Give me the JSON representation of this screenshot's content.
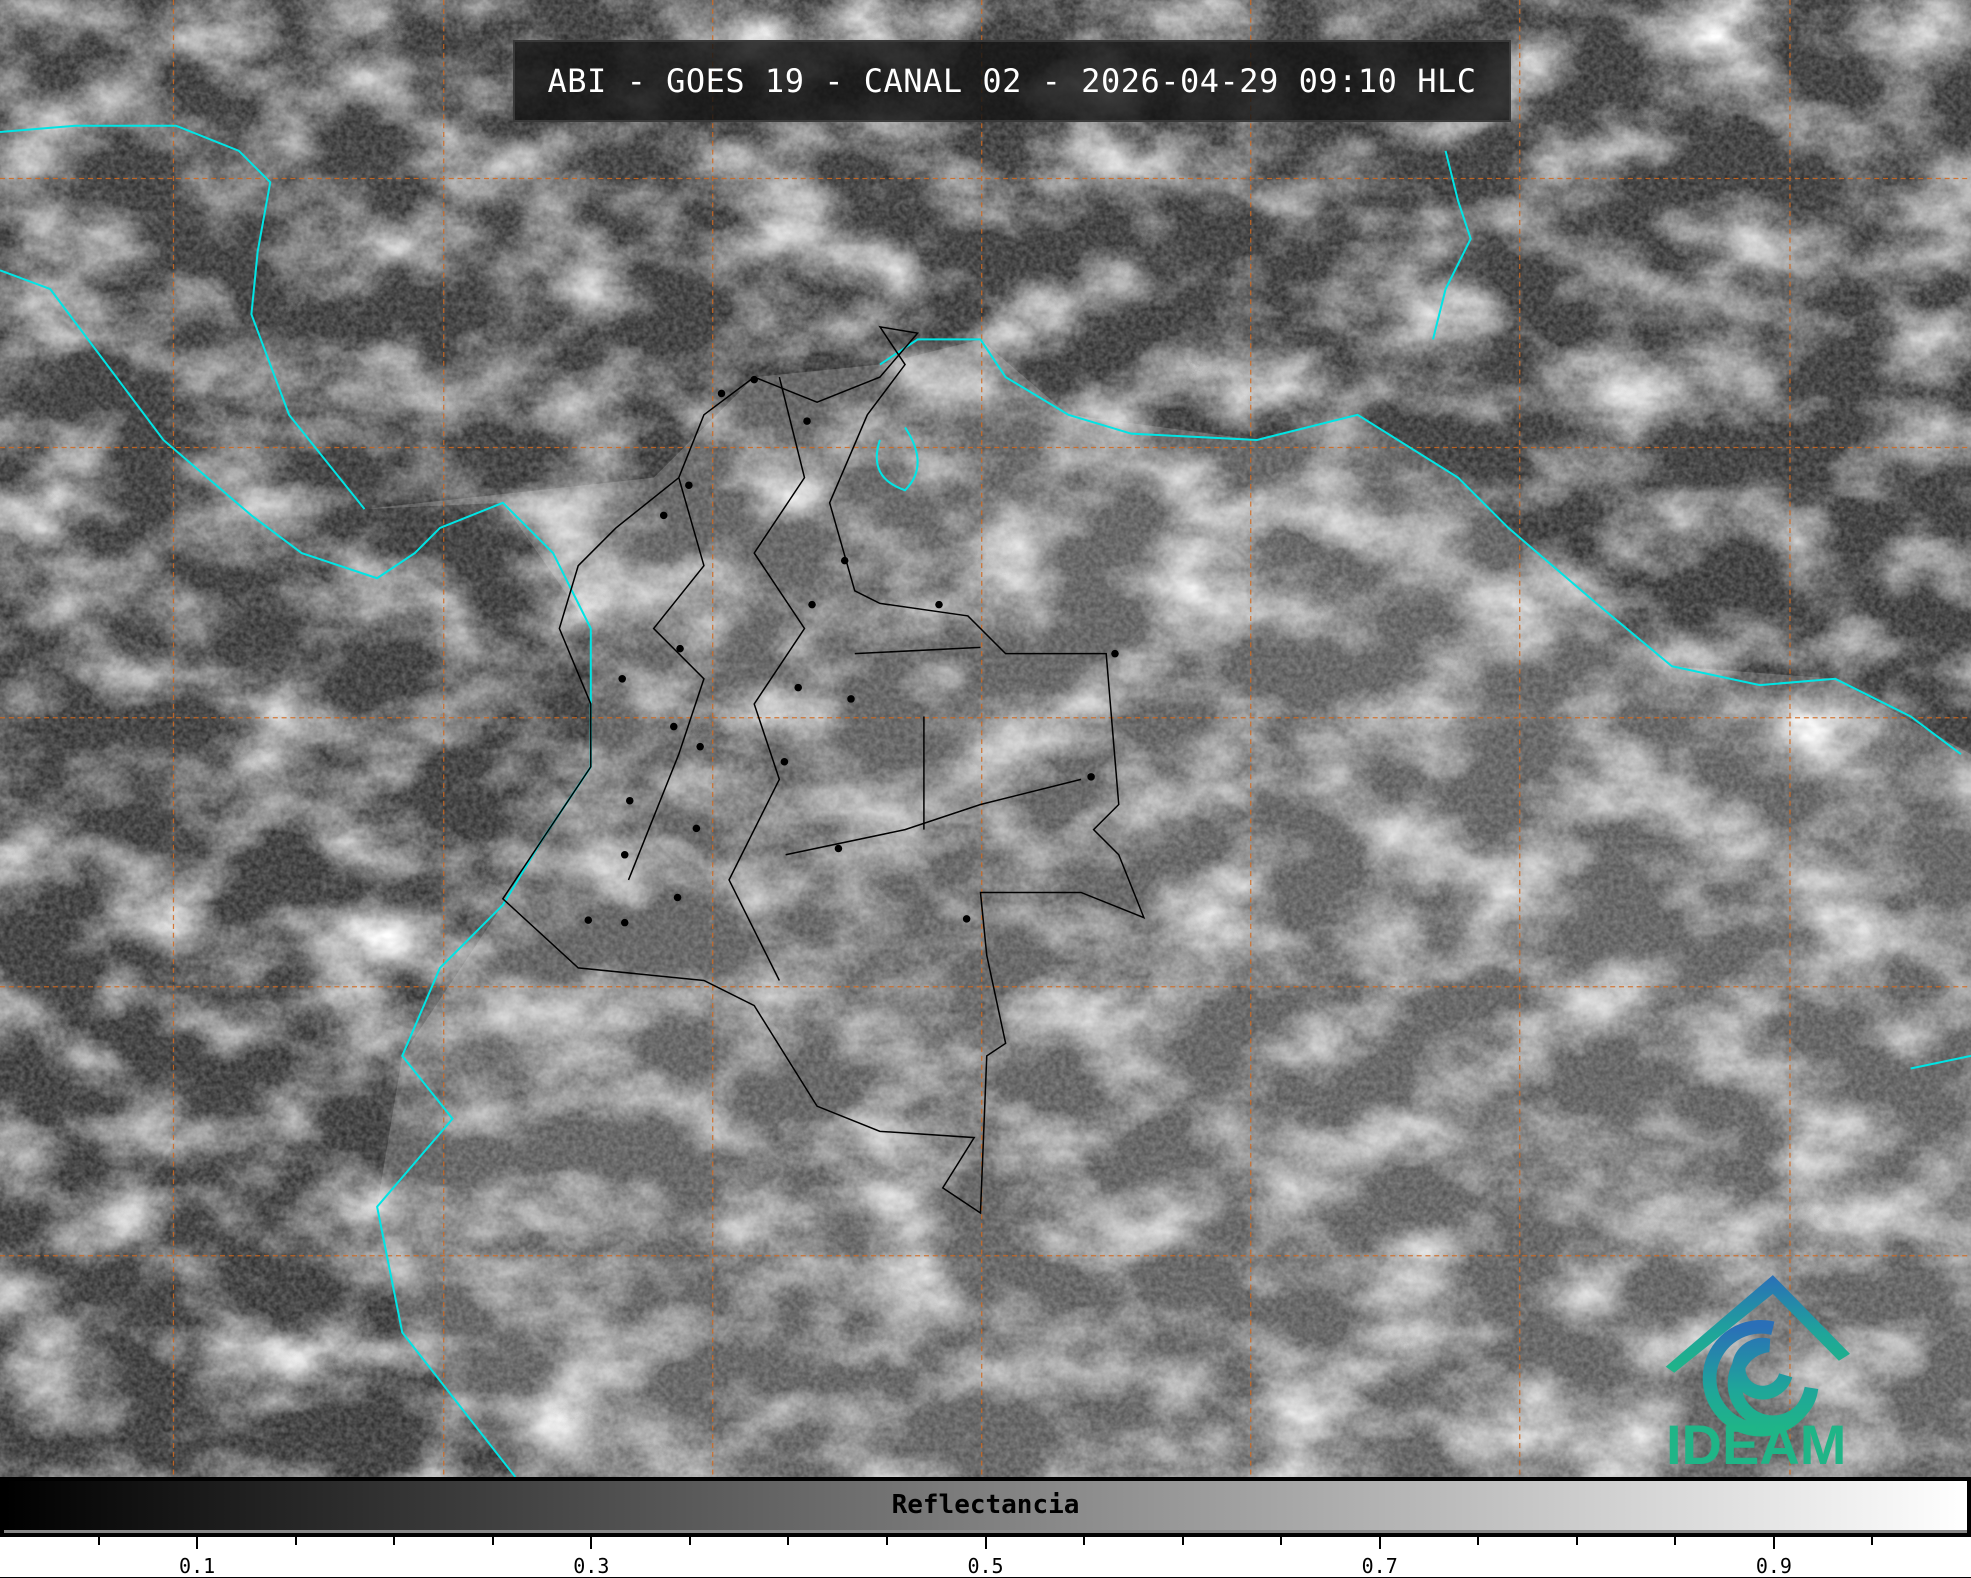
{
  "title": "ABI - GOES 19 - CANAL 02 - 2026-04-29 09:10 HLC",
  "colorbar": {
    "label": "Reflectancia",
    "range": [
      0,
      1
    ],
    "colormap": "grayscale",
    "major_ticks": [
      0.1,
      0.3,
      0.5,
      0.7,
      0.9
    ],
    "tick_labels": [
      "0.1",
      "0.3",
      "0.5",
      "0.7",
      "0.9"
    ],
    "minor_step": 0.05
  },
  "logo": {
    "text": "IDEAM",
    "color": "#1fb587",
    "roof_color": "#2a6fb8"
  },
  "colors": {
    "coastline": "#00e5e5",
    "graticule": "#d2691e",
    "borders": "#000000"
  }
}
